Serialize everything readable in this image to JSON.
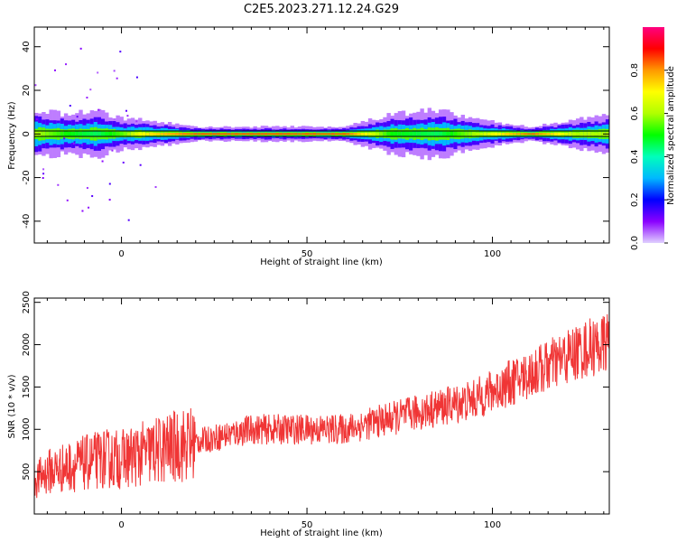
{
  "figure": {
    "title": "C2E5.2023.271.12.24.G29"
  },
  "chart_data": [
    {
      "type": "heatmap",
      "title": "C2E5.2023.271.12.24.G29",
      "xlabel": "Height of straight line (km)",
      "ylabel": "Frequency (Hz)",
      "xlim": [
        -23.5,
        131.5
      ],
      "ylim": [
        -50,
        49
      ],
      "xticks": [
        0,
        50,
        100
      ],
      "yticks": [
        -40,
        -20,
        0,
        20,
        40
      ],
      "colorbar": {
        "label": "Normalized spectral amplitude",
        "range": [
          0,
          1
        ],
        "ticks": [
          0.0,
          0.2,
          0.4,
          0.6,
          0.8
        ],
        "colors": [
          "#e0d0ff",
          "#8a00ff",
          "#0000ff",
          "#00b8ff",
          "#00ffbb",
          "#00ff00",
          "#b0ff00",
          "#ffff00",
          "#ff9900",
          "#ff0000",
          "#ff0080"
        ]
      },
      "line_freq_hz": 0,
      "spread_profile": [
        {
          "h": -23,
          "hz": 5,
          "amp": 0.6
        },
        {
          "h": -15,
          "hz": 4,
          "amp": 0.5
        },
        {
          "h": -7,
          "hz": 5,
          "amp": 0.45
        },
        {
          "h": 0,
          "hz": 3,
          "amp": 0.55
        },
        {
          "h": 5,
          "hz": 3,
          "amp": 0.7
        },
        {
          "h": 20,
          "hz": 1.5,
          "amp": 0.85
        },
        {
          "h": 60,
          "hz": 1.5,
          "amp": 0.85
        },
        {
          "h": 72,
          "hz": 4,
          "amp": 0.5
        },
        {
          "h": 85,
          "hz": 5,
          "amp": 0.45
        },
        {
          "h": 95,
          "hz": 3,
          "amp": 0.6
        },
        {
          "h": 110,
          "hz": 1.5,
          "amp": 0.85
        },
        {
          "h": 122,
          "hz": 3,
          "amp": 0.6
        },
        {
          "h": 131,
          "hz": 4,
          "amp": 0.6
        }
      ]
    },
    {
      "type": "line",
      "xlabel": "Height of straight line (km)",
      "ylabel": "SNR (10 * v/v)",
      "xlim": [
        -23.5,
        131.5
      ],
      "ylim": [
        0,
        2550
      ],
      "xticks": [
        0,
        50,
        100
      ],
      "yticks": [
        500,
        1000,
        1500,
        2000,
        2500
      ],
      "color": "#f03535",
      "series": [
        {
          "x": [
            -23,
            -20,
            -15,
            -10,
            -5,
            0,
            5,
            10,
            15,
            20,
            25,
            30,
            35,
            40,
            45,
            50,
            55,
            60,
            65,
            70,
            75,
            80,
            85,
            90,
            95,
            100,
            105,
            110,
            115,
            120,
            125,
            130,
            131
          ],
          "y": [
            400,
            500,
            550,
            600,
            650,
            650,
            700,
            750,
            800,
            850,
            900,
            950,
            1000,
            1000,
            1000,
            1000,
            1000,
            1000,
            1050,
            1100,
            1150,
            1200,
            1250,
            1300,
            1350,
            1450,
            1550,
            1650,
            1750,
            1850,
            1950,
            2000,
            2050
          ]
        }
      ]
    }
  ]
}
